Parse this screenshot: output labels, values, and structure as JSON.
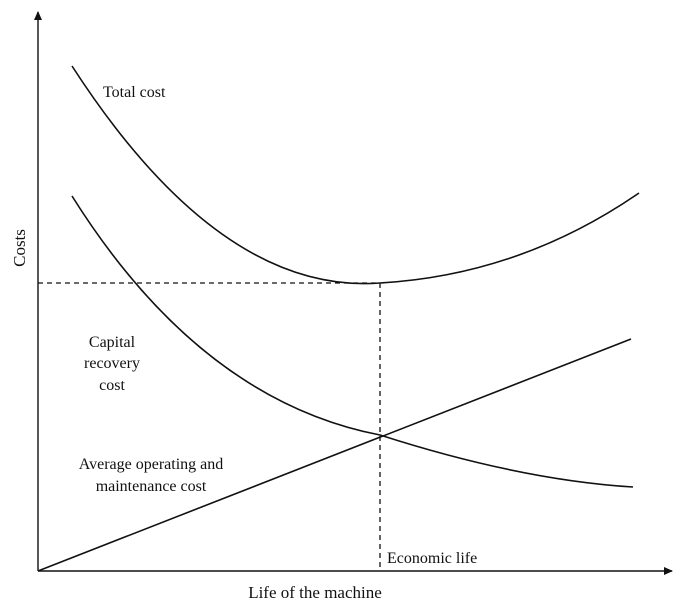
{
  "chart_data": {
    "type": "line",
    "xlabel": "Life of the machine",
    "ylabel": "Costs",
    "series": [
      {
        "name": "Total cost"
      },
      {
        "name": "Capital recovery cost"
      },
      {
        "name": "Average operating and maintenance cost"
      }
    ],
    "labels": {
      "total_cost": "Total cost",
      "capital_line1": "Capital",
      "capital_line2": "recovery",
      "capital_line3": "cost",
      "om_line1": "Average operating and",
      "om_line2": "maintenance cost",
      "economic_life": "Economic life"
    },
    "grid": false,
    "legend": "none"
  },
  "colors": {
    "line": "#111111",
    "background": "#ffffff"
  }
}
